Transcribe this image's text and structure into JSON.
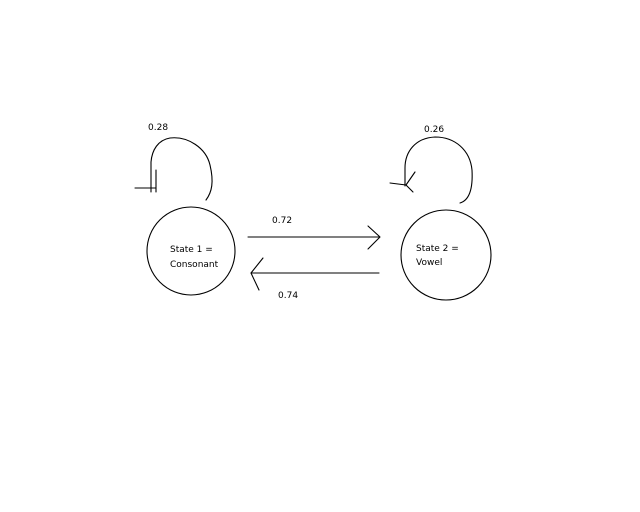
{
  "states": [
    {
      "id": "s1",
      "lines": [
        "State 1 =",
        "Consonant"
      ]
    },
    {
      "id": "s2",
      "lines": [
        "State 2 =",
        "Vowel"
      ]
    }
  ],
  "transitions": [
    {
      "from": "s1",
      "to": "s1",
      "label": "0.28"
    },
    {
      "from": "s2",
      "to": "s2",
      "label": "0.26"
    },
    {
      "from": "s1",
      "to": "s2",
      "label": "0.72"
    },
    {
      "from": "s2",
      "to": "s1",
      "label": "0.74"
    }
  ],
  "colors": {
    "ink": "#000000",
    "background": "#ffffff"
  }
}
